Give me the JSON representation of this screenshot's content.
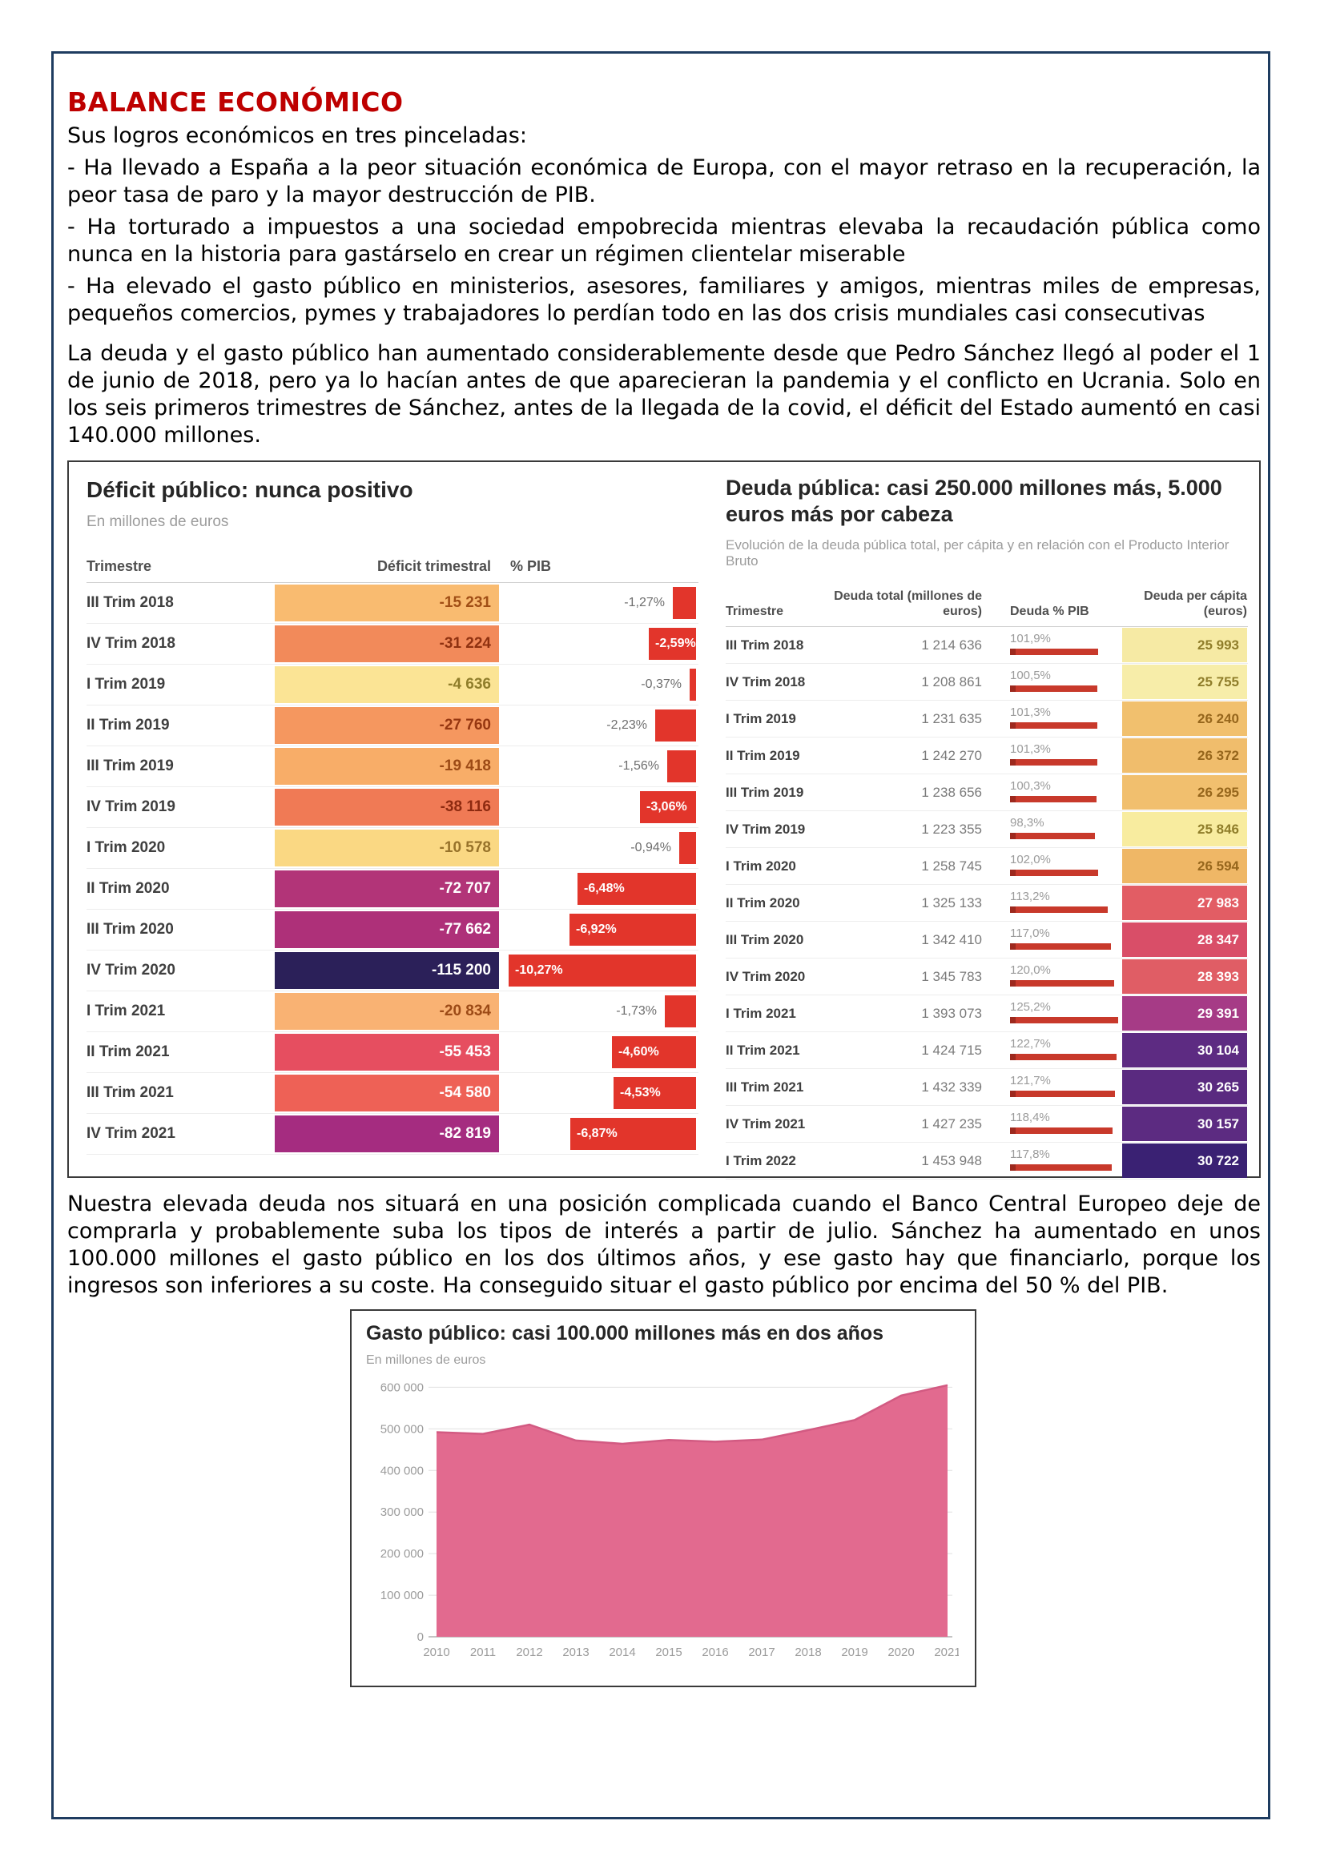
{
  "page": {
    "heading": "BALANCE ECONÓMICO",
    "paragraphs": [
      "Sus logros económicos en tres pinceladas:",
      "- Ha llevado a España a la peor situación económica de Europa, con el mayor retraso en la recuperación, la peor tasa de paro y la mayor destrucción de PIB.",
      "- Ha torturado a impuestos a una sociedad empobrecida mientras elevaba la recaudación pública como nunca en la historia para gastárselo en crear un régimen clientelar miserable",
      "- Ha elevado el gasto público en ministerios, asesores, familiares y amigos, mientras miles de empresas, pequeños comercios, pymes y trabajadores lo perdían todo en las dos crisis mundiales casi consecutivas",
      "La deuda y el gasto público han aumentado considerablemente desde que Pedro Sánchez llegó al poder el 1 de junio de 2018, pero ya lo hacían antes de que aparecieran la pandemia y el conflicto en Ucrania. Solo en los seis primeros trimestres de Sánchez, antes de la llegada de la covid, el déficit del Estado aumentó en casi 140.000 millones."
    ],
    "middle_paragraph": "Nuestra elevada deuda nos situará en una posición complicada cuando el Banco Central Europeo deje de comprarla y probablemente suba los tipos de interés a partir de julio. Sánchez ha aumentado en unos 100.000 millones el gasto público en los dos últimos años, y ese gasto hay que financiarlo, porque los ingresos son inferiores a su coste. Ha conseguido situar el gasto público por encima del 50 % del PIB."
  },
  "chart_data": [
    {
      "type": "table",
      "panel": "deficit",
      "title": "Déficit público: nunca positivo",
      "subtitle": "En millones de euros",
      "columns": [
        "Trimestre",
        "Déficit trimestral",
        "% PIB"
      ],
      "bar_color": "#e2352b",
      "rows": [
        {
          "trimestre": "III Trim 2018",
          "deficit": "-15 231",
          "pib_label": "-1,27%",
          "pib_value": 1.27,
          "pib_inside": false,
          "cell_color": "#f9bb70",
          "value_color": "#a04e15"
        },
        {
          "trimestre": "IV Trim 2018",
          "deficit": "-31 224",
          "pib_label": "-2,59%",
          "pib_value": 2.59,
          "pib_inside": true,
          "cell_color": "#f28a5a",
          "value_color": "#8f3110"
        },
        {
          "trimestre": "I Trim 2019",
          "deficit": "-4 636",
          "pib_label": "-0,37%",
          "pib_value": 0.37,
          "pib_inside": false,
          "cell_color": "#fbe495",
          "value_color": "#8f7d2a"
        },
        {
          "trimestre": "II Trim 2019",
          "deficit": "-27 760",
          "pib_label": "-2,23%",
          "pib_value": 2.23,
          "pib_inside": false,
          "cell_color": "#f5975f",
          "value_color": "#963711"
        },
        {
          "trimestre": "III Trim 2019",
          "deficit": "-19 418",
          "pib_label": "-1,56%",
          "pib_value": 1.56,
          "pib_inside": false,
          "cell_color": "#f8ad68",
          "value_color": "#9c4a16"
        },
        {
          "trimestre": "IV Trim 2019",
          "deficit": "-38 116",
          "pib_label": "-3,06%",
          "pib_value": 3.06,
          "pib_inside": true,
          "cell_color": "#f07a55",
          "value_color": "#8d2a10"
        },
        {
          "trimestre": "I Trim 2020",
          "deficit": "-10 578",
          "pib_label": "-0,94%",
          "pib_value": 0.94,
          "pib_inside": false,
          "cell_color": "#fad883",
          "value_color": "#97722a"
        },
        {
          "trimestre": "II Trim 2020",
          "deficit": "-72 707",
          "pib_label": "-6,48%",
          "pib_value": 6.48,
          "pib_inside": true,
          "cell_color": "#b23478",
          "value_color": "#ffffff"
        },
        {
          "trimestre": "III Trim 2020",
          "deficit": "-77 662",
          "pib_label": "-6,92%",
          "pib_value": 6.92,
          "pib_inside": true,
          "cell_color": "#ae3079",
          "value_color": "#ffffff"
        },
        {
          "trimestre": "IV Trim 2020",
          "deficit": "-115 200",
          "pib_label": "-10,27%",
          "pib_value": 10.27,
          "pib_inside": true,
          "cell_color": "#2b2059",
          "value_color": "#ffffff"
        },
        {
          "trimestre": "I Trim 2021",
          "deficit": "-20 834",
          "pib_label": "-1,73%",
          "pib_value": 1.73,
          "pib_inside": false,
          "cell_color": "#f9b273",
          "value_color": "#9c4a16"
        },
        {
          "trimestre": "II Trim 2021",
          "deficit": "-55 453",
          "pib_label": "-4,60%",
          "pib_value": 4.6,
          "pib_inside": true,
          "cell_color": "#e64e60",
          "value_color": "#ffffff"
        },
        {
          "trimestre": "III Trim 2021",
          "deficit": "-54 580",
          "pib_label": "-4,53%",
          "pib_value": 4.53,
          "pib_inside": true,
          "cell_color": "#ee6156",
          "value_color": "#ffffff"
        },
        {
          "trimestre": "IV Trim 2021",
          "deficit": "-82 819",
          "pib_label": "-6,87%",
          "pib_value": 6.87,
          "pib_inside": true,
          "cell_color": "#a52c80",
          "value_color": "#ffffff"
        }
      ]
    },
    {
      "type": "table",
      "panel": "debt",
      "title": "Deuda pública: casi 250.000 millones más, 5.000 euros más por cabeza",
      "subtitle": "Evolución de la deuda pública total, per cápita y en relación con el Producto Interior Bruto",
      "columns": [
        "Trimestre",
        "Deuda total (millones de euros)",
        "Deuda % PIB",
        "Deuda per cápita (euros)"
      ],
      "bar_color": "#c8392b",
      "rows": [
        {
          "trimestre": "III Trim 2018",
          "total": "1 214 636",
          "pib_label": "101,9%",
          "pib_value": 101.9,
          "per_capita": "25 993",
          "cell_color": "#f6eaa4",
          "value_color": "#8f7d2a"
        },
        {
          "trimestre": "IV Trim 2018",
          "total": "1 208 861",
          "pib_label": "100,5%",
          "pib_value": 100.5,
          "per_capita": "25 755",
          "cell_color": "#f7eda9",
          "value_color": "#8f7d2a"
        },
        {
          "trimestre": "I Trim 2019",
          "total": "1 231 635",
          "pib_label": "101,3%",
          "pib_value": 101.3,
          "per_capita": "26 240",
          "cell_color": "#f1c06e",
          "value_color": "#96661c"
        },
        {
          "trimestre": "II Trim 2019",
          "total": "1 242 270",
          "pib_label": "101,3%",
          "pib_value": 101.3,
          "per_capita": "26 372",
          "cell_color": "#f0bd6c",
          "value_color": "#96661c"
        },
        {
          "trimestre": "III Trim 2019",
          "total": "1 238 656",
          "pib_label": "100,3%",
          "pib_value": 100.3,
          "per_capita": "26 295",
          "cell_color": "#f1bf6e",
          "value_color": "#96661c"
        },
        {
          "trimestre": "IV Trim 2019",
          "total": "1 223 355",
          "pib_label": "98,3%",
          "pib_value": 98.3,
          "per_capita": "25 846",
          "cell_color": "#f8ec9f",
          "value_color": "#8f7d2a"
        },
        {
          "trimestre": "I Trim 2020",
          "total": "1 258 745",
          "pib_label": "102,0%",
          "pib_value": 102.0,
          "per_capita": "26 594",
          "cell_color": "#efb766",
          "value_color": "#96661c"
        },
        {
          "trimestre": "II Trim 2020",
          "total": "1 325 133",
          "pib_label": "113,2%",
          "pib_value": 113.2,
          "per_capita": "27 983",
          "cell_color": "#e25d64",
          "value_color": "#ffffff"
        },
        {
          "trimestre": "III Trim 2020",
          "total": "1 342 410",
          "pib_label": "117,0%",
          "pib_value": 117.0,
          "per_capita": "28 347",
          "cell_color": "#d94e68",
          "value_color": "#ffffff"
        },
        {
          "trimestre": "IV Trim 2020",
          "total": "1 345 783",
          "pib_label": "120,0%",
          "pib_value": 120.0,
          "per_capita": "28 393",
          "cell_color": "#e05d65",
          "value_color": "#ffffff"
        },
        {
          "trimestre": "I Trim 2021",
          "total": "1 393 073",
          "pib_label": "125,2%",
          "pib_value": 125.2,
          "per_capita": "29 391",
          "cell_color": "#a63b86",
          "value_color": "#ffffff"
        },
        {
          "trimestre": "II Trim 2021",
          "total": "1 424 715",
          "pib_label": "122,7%",
          "pib_value": 122.7,
          "per_capita": "30 104",
          "cell_color": "#5d2b82",
          "value_color": "#ffffff"
        },
        {
          "trimestre": "III Trim 2021",
          "total": "1 432 339",
          "pib_label": "121,7%",
          "pib_value": 121.7,
          "per_capita": "30 265",
          "cell_color": "#5a2a80",
          "value_color": "#ffffff"
        },
        {
          "trimestre": "IV Trim 2021",
          "total": "1 427 235",
          "pib_label": "118,4%",
          "pib_value": 118.4,
          "per_capita": "30 157",
          "cell_color": "#5c2b81",
          "value_color": "#ffffff"
        },
        {
          "trimestre": "I Trim 2022",
          "total": "1 453 948",
          "pib_label": "117,8%",
          "pib_value": 117.8,
          "per_capita": "30 722",
          "cell_color": "#3a2173",
          "value_color": "#ffffff"
        }
      ]
    },
    {
      "type": "area",
      "title": "Gasto público: casi 100.000 millones más en dos años",
      "subtitle": "En millones de euros",
      "x": [
        2010,
        2011,
        2012,
        2013,
        2014,
        2015,
        2016,
        2017,
        2018,
        2019,
        2020,
        2021
      ],
      "values": [
        492000,
        488000,
        510000,
        472000,
        464000,
        473000,
        469000,
        474000,
        497000,
        521000,
        580000,
        605000
      ],
      "ylim": [
        0,
        620000
      ],
      "ytick_values": [
        0,
        100000,
        200000,
        300000,
        400000,
        500000,
        600000
      ],
      "ytick_labels": [
        "0",
        "100 000",
        "200 000",
        "300 000",
        "400 000",
        "500 000",
        "600 000"
      ],
      "grid": "on",
      "legend": "none",
      "fill_color": "#e26a8f",
      "stroke_color": "#d25a82",
      "axis_text_color": "#9b9b9b",
      "grid_color": "#e0e0e0"
    }
  ]
}
